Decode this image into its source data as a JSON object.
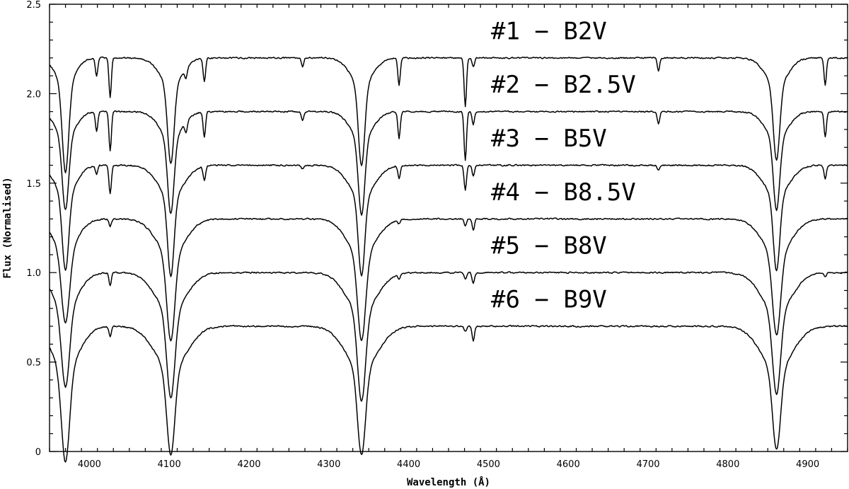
{
  "chart_data": {
    "type": "line",
    "xlabel": "Wavelength (Å)",
    "ylabel": "Flux (Normalised)",
    "xlim": [
      3950,
      4950
    ],
    "ylim": [
      0,
      2.5
    ],
    "xticks_major": [
      4000,
      4100,
      4200,
      4300,
      4400,
      4500,
      4600,
      4700,
      4800,
      4900
    ],
    "yticks_major": [
      0,
      0.5,
      1.0,
      1.5,
      2.0,
      2.5
    ],
    "ytick_labels": [
      "0",
      "0.5",
      "1.0",
      "1.5",
      "2.0",
      "2.5"
    ],
    "series": [
      {
        "name": "#1 − B2V",
        "offset": 2.2,
        "lines": [
          {
            "w": 3970,
            "d": 0.49,
            "s": 4
          },
          {
            "w": 3970,
            "d": 0.15,
            "s": 12
          },
          {
            "w": 4009,
            "d": 0.1,
            "s": 1.5
          },
          {
            "w": 4026,
            "d": 0.22,
            "s": 1.5
          },
          {
            "w": 4102,
            "d": 0.44,
            "s": 4
          },
          {
            "w": 4102,
            "d": 0.15,
            "s": 14
          },
          {
            "w": 4121,
            "d": 0.06,
            "s": 1.5
          },
          {
            "w": 4144,
            "d": 0.13,
            "s": 1.5
          },
          {
            "w": 4267,
            "d": 0.05,
            "s": 1.5
          },
          {
            "w": 4341,
            "d": 0.45,
            "s": 4
          },
          {
            "w": 4341,
            "d": 0.15,
            "s": 14
          },
          {
            "w": 4388,
            "d": 0.15,
            "s": 1.5
          },
          {
            "w": 4471,
            "d": 0.27,
            "s": 1.5
          },
          {
            "w": 4481,
            "d": 0.05,
            "s": 1.5
          },
          {
            "w": 4713,
            "d": 0.07,
            "s": 1.5
          },
          {
            "w": 4861,
            "d": 0.42,
            "s": 4
          },
          {
            "w": 4861,
            "d": 0.15,
            "s": 14
          },
          {
            "w": 4922,
            "d": 0.15,
            "s": 1.5
          }
        ]
      },
      {
        "name": "#2 − B2.5V",
        "offset": 1.9,
        "lines": [
          {
            "w": 3970,
            "d": 0.4,
            "s": 4
          },
          {
            "w": 3970,
            "d": 0.15,
            "s": 12
          },
          {
            "w": 4009,
            "d": 0.11,
            "s": 1.5
          },
          {
            "w": 4026,
            "d": 0.22,
            "s": 1.5
          },
          {
            "w": 4102,
            "d": 0.42,
            "s": 4
          },
          {
            "w": 4102,
            "d": 0.15,
            "s": 14
          },
          {
            "w": 4121,
            "d": 0.06,
            "s": 1.5
          },
          {
            "w": 4144,
            "d": 0.14,
            "s": 1.5
          },
          {
            "w": 4267,
            "d": 0.05,
            "s": 1.5
          },
          {
            "w": 4341,
            "d": 0.43,
            "s": 4
          },
          {
            "w": 4341,
            "d": 0.15,
            "s": 14
          },
          {
            "w": 4388,
            "d": 0.15,
            "s": 1.5
          },
          {
            "w": 4471,
            "d": 0.27,
            "s": 1.5
          },
          {
            "w": 4481,
            "d": 0.07,
            "s": 1.5
          },
          {
            "w": 4713,
            "d": 0.07,
            "s": 1.5
          },
          {
            "w": 4861,
            "d": 0.4,
            "s": 4
          },
          {
            "w": 4861,
            "d": 0.15,
            "s": 14
          },
          {
            "w": 4922,
            "d": 0.14,
            "s": 1.5
          }
        ]
      },
      {
        "name": "#3 − B5V",
        "offset": 1.6,
        "lines": [
          {
            "w": 3970,
            "d": 0.42,
            "s": 4
          },
          {
            "w": 3970,
            "d": 0.17,
            "s": 13
          },
          {
            "w": 4009,
            "d": 0.05,
            "s": 1.5
          },
          {
            "w": 4026,
            "d": 0.16,
            "s": 1.5
          },
          {
            "w": 4102,
            "d": 0.44,
            "s": 4
          },
          {
            "w": 4102,
            "d": 0.18,
            "s": 16
          },
          {
            "w": 4144,
            "d": 0.08,
            "s": 1.5
          },
          {
            "w": 4267,
            "d": 0.02,
            "s": 1.5
          },
          {
            "w": 4341,
            "d": 0.44,
            "s": 4
          },
          {
            "w": 4341,
            "d": 0.18,
            "s": 16
          },
          {
            "w": 4388,
            "d": 0.07,
            "s": 1.5
          },
          {
            "w": 4471,
            "d": 0.14,
            "s": 1.5
          },
          {
            "w": 4481,
            "d": 0.06,
            "s": 1.5
          },
          {
            "w": 4713,
            "d": 0.03,
            "s": 1.5
          },
          {
            "w": 4861,
            "d": 0.42,
            "s": 4
          },
          {
            "w": 4861,
            "d": 0.17,
            "s": 16
          },
          {
            "w": 4922,
            "d": 0.08,
            "s": 1.5
          }
        ]
      },
      {
        "name": "#4 − B8.5V",
        "offset": 1.3,
        "lines": [
          {
            "w": 3970,
            "d": 0.4,
            "s": 5
          },
          {
            "w": 3970,
            "d": 0.18,
            "s": 15
          },
          {
            "w": 4026,
            "d": 0.04,
            "s": 1.5
          },
          {
            "w": 4102,
            "d": 0.48,
            "s": 5
          },
          {
            "w": 4102,
            "d": 0.2,
            "s": 18
          },
          {
            "w": 4341,
            "d": 0.48,
            "s": 5
          },
          {
            "w": 4341,
            "d": 0.2,
            "s": 18
          },
          {
            "w": 4388,
            "d": 0.02,
            "s": 1.5
          },
          {
            "w": 4471,
            "d": 0.04,
            "s": 1.5
          },
          {
            "w": 4481,
            "d": 0.06,
            "s": 1.5
          },
          {
            "w": 4861,
            "d": 0.45,
            "s": 5
          },
          {
            "w": 4861,
            "d": 0.2,
            "s": 18
          }
        ]
      },
      {
        "name": "#5 − B8V",
        "offset": 1.0,
        "lines": [
          {
            "w": 3970,
            "d": 0.44,
            "s": 5
          },
          {
            "w": 3970,
            "d": 0.2,
            "s": 16
          },
          {
            "w": 4026,
            "d": 0.07,
            "s": 1.5
          },
          {
            "w": 4102,
            "d": 0.48,
            "s": 5
          },
          {
            "w": 4102,
            "d": 0.22,
            "s": 19
          },
          {
            "w": 4341,
            "d": 0.5,
            "s": 5
          },
          {
            "w": 4341,
            "d": 0.22,
            "s": 19
          },
          {
            "w": 4388,
            "d": 0.03,
            "s": 1.5
          },
          {
            "w": 4471,
            "d": 0.04,
            "s": 1.5
          },
          {
            "w": 4481,
            "d": 0.06,
            "s": 1.5
          },
          {
            "w": 4861,
            "d": 0.46,
            "s": 5
          },
          {
            "w": 4861,
            "d": 0.22,
            "s": 19
          },
          {
            "w": 4922,
            "d": 0.02,
            "s": 1.5
          }
        ]
      },
      {
        "name": "#6 − B9V",
        "offset": 0.7,
        "lines": [
          {
            "w": 3970,
            "d": 0.52,
            "s": 5
          },
          {
            "w": 3970,
            "d": 0.24,
            "s": 17
          },
          {
            "w": 4026,
            "d": 0.06,
            "s": 1.5
          },
          {
            "w": 4102,
            "d": 0.48,
            "s": 5
          },
          {
            "w": 4102,
            "d": 0.24,
            "s": 20
          },
          {
            "w": 4341,
            "d": 0.48,
            "s": 5
          },
          {
            "w": 4341,
            "d": 0.24,
            "s": 20
          },
          {
            "w": 4471,
            "d": 0.03,
            "s": 1.5
          },
          {
            "w": 4481,
            "d": 0.08,
            "s": 1.5
          },
          {
            "w": 4861,
            "d": 0.45,
            "s": 5
          },
          {
            "w": 4861,
            "d": 0.24,
            "s": 20
          }
        ]
      }
    ]
  }
}
